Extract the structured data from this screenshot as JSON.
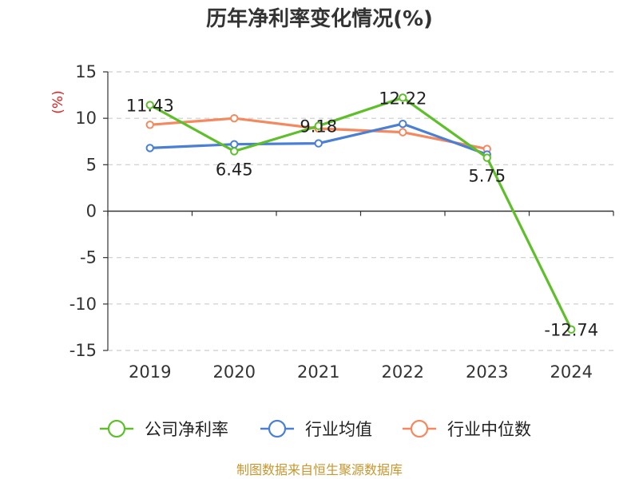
{
  "chart_data": {
    "type": "line",
    "title": "历年净利率变化情况(%)",
    "ylabel": "(%)",
    "xlabel": "",
    "categories": [
      "2019",
      "2020",
      "2021",
      "2022",
      "2023",
      "2024"
    ],
    "ylim": [
      -15,
      15
    ],
    "yticks": [
      15,
      10,
      5,
      0,
      -5,
      -10,
      -15
    ],
    "grid": true,
    "legend_position": "bottom",
    "series": [
      {
        "name": "公司净利率",
        "color": "#5fbf2b",
        "values": [
          11.43,
          6.45,
          9.18,
          12.22,
          5.75,
          -12.74
        ],
        "labels": [
          "11.43",
          "6.45",
          "9.18",
          "12.22",
          "5.75",
          "-12.74"
        ]
      },
      {
        "name": "行业均值",
        "color": "#4a7fd4",
        "values": [
          6.8,
          7.2,
          7.3,
          9.4,
          6.1,
          null
        ]
      },
      {
        "name": "行业中位数",
        "color": "#f4895f",
        "values": [
          9.3,
          10.0,
          8.9,
          8.5,
          6.7,
          null
        ]
      }
    ]
  },
  "source_note": "制图数据来自恒生聚源数据库",
  "colors": {
    "title": "#333333",
    "ylabel": "#e02020",
    "grid": "#cccccc",
    "axis": "#333333",
    "source_note": "#c8962f"
  }
}
